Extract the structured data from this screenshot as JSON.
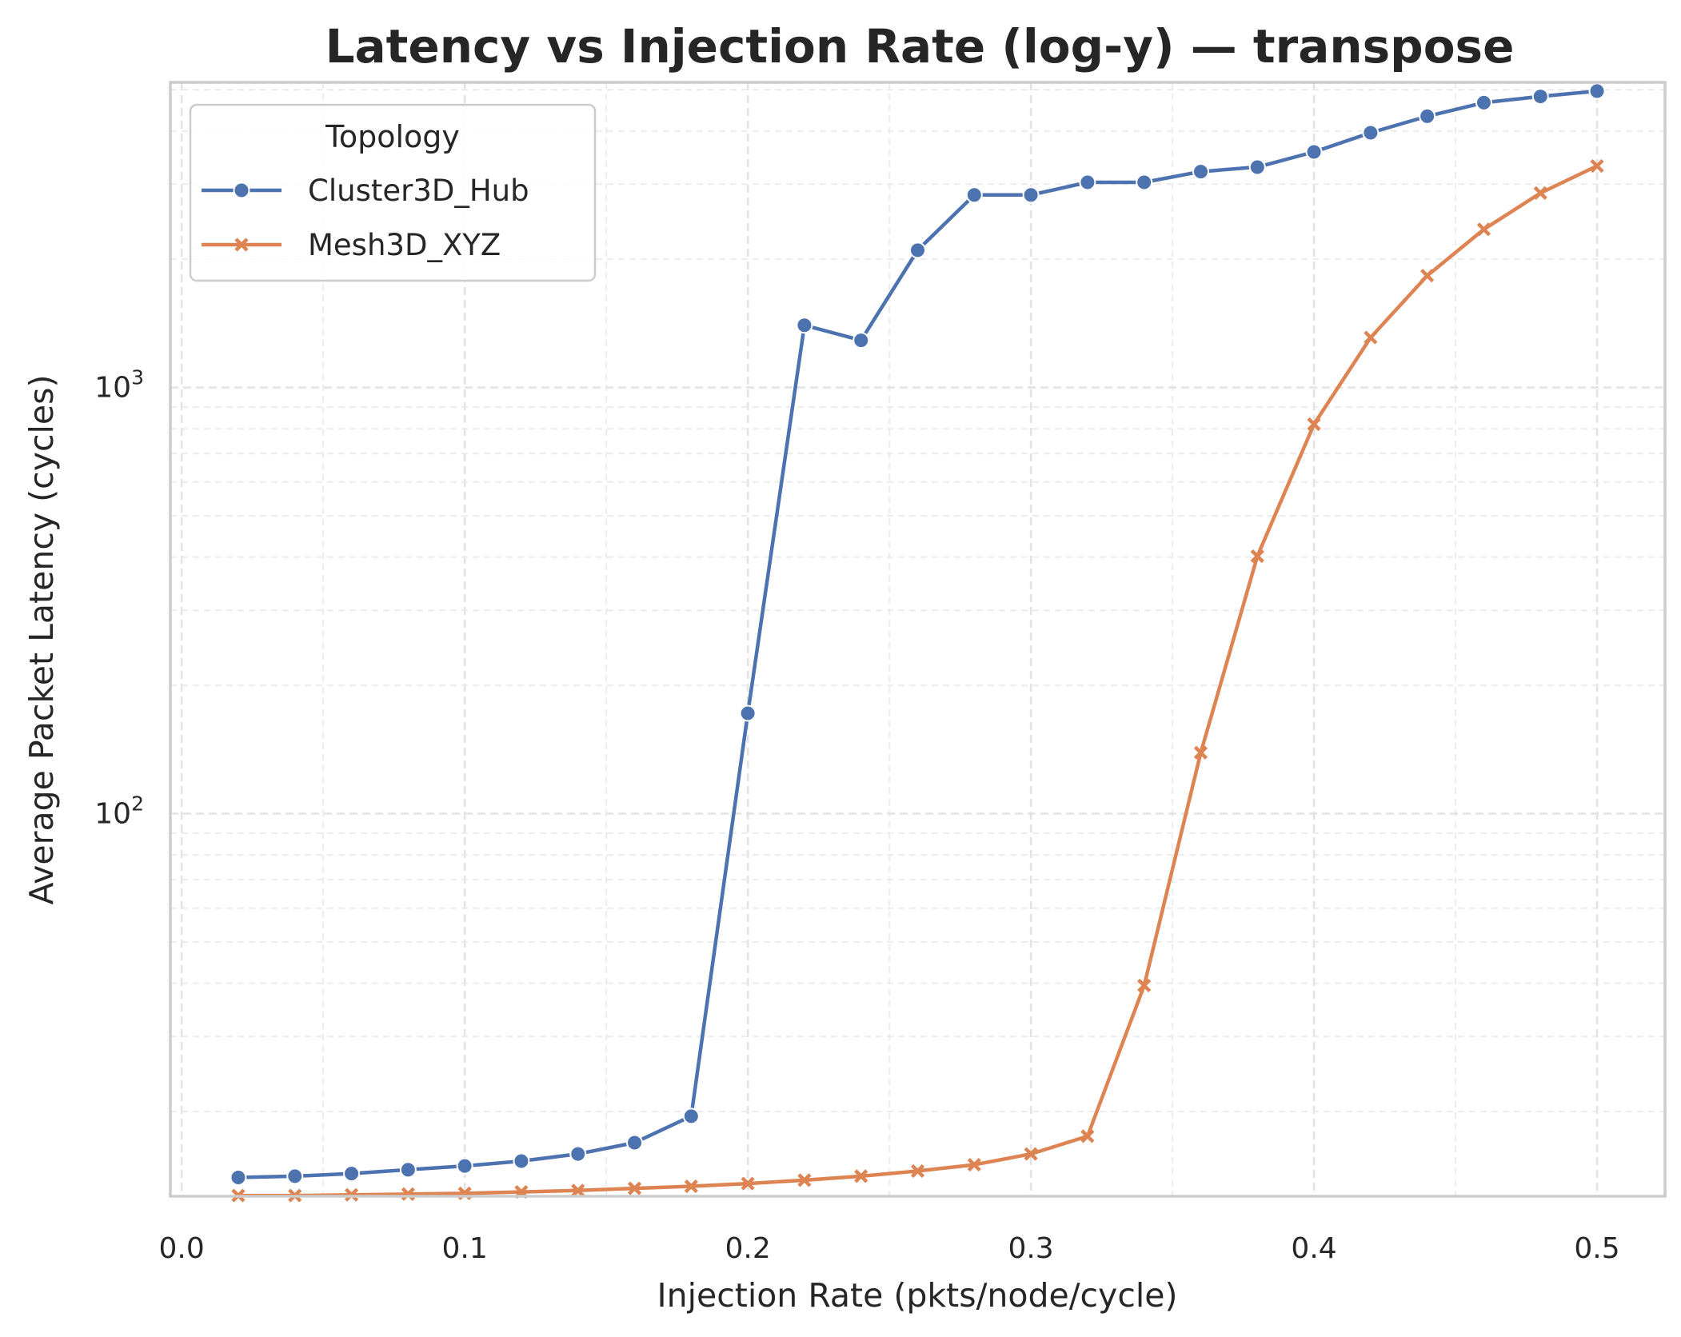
{
  "chart_data": {
    "type": "line",
    "title": "Latency vs Injection Rate (log-y) — transpose",
    "xlabel": "Injection Rate (pkts/node/cycle)",
    "ylabel": "Average Packet Latency (cycles)",
    "yscale": "log",
    "xlim": [
      -0.004,
      0.524
    ],
    "ylim": [
      12.65,
      5200
    ],
    "x_ticks": [
      0.0,
      0.1,
      0.2,
      0.3,
      0.4,
      0.5
    ],
    "x_tick_labels": [
      "0.0",
      "0.1",
      "0.2",
      "0.3",
      "0.4",
      "0.5"
    ],
    "y_ticks": [
      100,
      1000
    ],
    "y_tick_labels": [
      {
        "base": "10",
        "exp": "2"
      },
      {
        "base": "10",
        "exp": "3"
      }
    ],
    "grid": true,
    "legend": {
      "title": "Topology",
      "placement": "top-left"
    },
    "x": [
      0.02,
      0.04,
      0.06,
      0.08,
      0.1,
      0.12,
      0.14,
      0.16,
      0.18,
      0.2,
      0.22,
      0.24,
      0.26,
      0.28,
      0.3,
      0.32,
      0.34,
      0.36,
      0.38,
      0.4,
      0.42,
      0.44,
      0.46,
      0.48,
      0.5
    ],
    "series": [
      {
        "name": "Cluster3D_Hub",
        "color": "#4c72b0",
        "marker": "circle",
        "values": [
          14.0,
          14.1,
          14.3,
          14.6,
          14.9,
          15.3,
          15.9,
          16.9,
          19.5,
          172,
          1400,
          1290,
          2100,
          2830,
          2830,
          3030,
          3030,
          3210,
          3290,
          3570,
          3960,
          4330,
          4660,
          4820,
          4960
        ]
      },
      {
        "name": "Mesh3D_XYZ",
        "color": "#dd8452",
        "marker": "x",
        "values": [
          12.7,
          12.7,
          12.75,
          12.8,
          12.85,
          12.95,
          13.05,
          13.2,
          13.35,
          13.55,
          13.8,
          14.1,
          14.5,
          15.0,
          15.9,
          17.5,
          39.5,
          139,
          402,
          820,
          1310,
          1830,
          2350,
          2860,
          3310
        ]
      }
    ]
  }
}
